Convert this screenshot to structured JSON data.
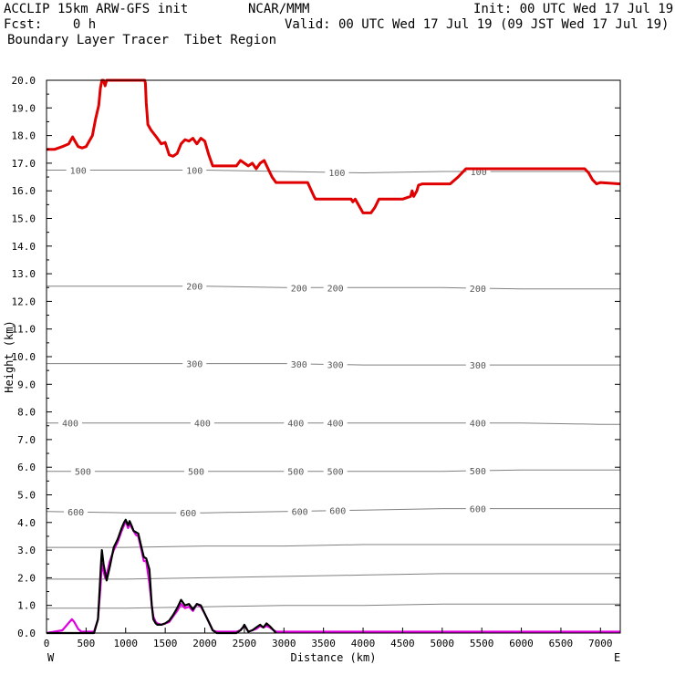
{
  "header": {
    "title_left": "ACCLIP 15km ARW-GFS init",
    "org": "NCAR/MMM",
    "init": "Init: 00 UTC Wed 17 Jul 19",
    "fcst": "Fcst:    0 h",
    "valid": "Valid: 00 UTC Wed 17 Jul 19 (09 JST Wed 17 Jul 19)",
    "product": "Boundary Layer Tracer  Tibet Region"
  },
  "chart_data": {
    "type": "line",
    "xlabel": "Distance (km)",
    "ylabel": "Height (km)",
    "xlim": [
      0,
      7250
    ],
    "ylim": [
      0,
      20
    ],
    "x_ticks": [
      0,
      500,
      1000,
      1500,
      2000,
      2500,
      3000,
      3500,
      4000,
      4500,
      5000,
      5500,
      6000,
      6500,
      7000
    ],
    "y_ticks": [
      "0.0",
      "1.0",
      "2.0",
      "3.0",
      "4.0",
      "5.0",
      "6.0",
      "7.0",
      "8.0",
      "9.0",
      "10.0",
      "11.0",
      "12.0",
      "13.0",
      "14.0",
      "15.0",
      "16.0",
      "17.0",
      "18.0",
      "19.0",
      "20.0"
    ],
    "x_end_labels": {
      "left": "W",
      "right": "E"
    },
    "grid": false,
    "colors": {
      "tropopause": "#e00000",
      "terrain_a": "#000000",
      "terrain_b": "#e000e0",
      "pressure": "#808080"
    },
    "series": [
      {
        "color": "#e00000",
        "x": [
          0,
          100,
          200,
          280,
          330,
          360,
          400,
          450,
          500,
          540,
          580,
          620,
          660,
          680,
          700,
          720,
          740,
          760,
          780,
          1240,
          1250,
          1260,
          1280,
          1320,
          1400,
          1450,
          1500,
          1550,
          1600,
          1650,
          1700,
          1750,
          1800,
          1850,
          1900,
          1950,
          2000,
          2050,
          2100,
          2300,
          2400,
          2450,
          2500,
          2550,
          2600,
          2650,
          2700,
          2750,
          2800,
          2850,
          2900,
          3000,
          3300,
          3380,
          3400,
          3500,
          3850,
          3870,
          3900,
          4000,
          4100,
          4150,
          4200,
          4500,
          4600,
          4620,
          4640,
          4680,
          4700,
          4750,
          4800,
          5100,
          5200,
          5300,
          6750,
          6800,
          6850,
          6900,
          6950,
          7000,
          7250
        ],
        "y": [
          17.5,
          17.5,
          17.6,
          17.7,
          17.95,
          17.8,
          17.6,
          17.55,
          17.6,
          17.8,
          18.0,
          18.6,
          19.1,
          19.7,
          20.0,
          20.0,
          19.8,
          20.0,
          20.0,
          20.0,
          19.9,
          19.2,
          18.4,
          18.2,
          17.9,
          17.7,
          17.75,
          17.3,
          17.25,
          17.35,
          17.7,
          17.85,
          17.8,
          17.9,
          17.7,
          17.9,
          17.8,
          17.3,
          16.9,
          16.9,
          16.9,
          17.1,
          17.0,
          16.9,
          17.0,
          16.8,
          17.0,
          17.1,
          16.8,
          16.5,
          16.3,
          16.3,
          16.3,
          15.8,
          15.7,
          15.7,
          15.7,
          15.6,
          15.7,
          15.2,
          15.2,
          15.4,
          15.7,
          15.7,
          15.8,
          16.0,
          15.8,
          16.0,
          16.2,
          16.25,
          16.25,
          16.25,
          16.5,
          16.8,
          16.8,
          16.8,
          16.65,
          16.4,
          16.25,
          16.3,
          16.25
        ]
      },
      {
        "color": "#e000e0",
        "x": [
          0,
          100,
          200,
          260,
          320,
          350,
          400,
          440,
          500,
          600,
          650,
          680,
          700,
          740,
          760,
          800,
          850,
          900,
          950,
          980,
          1000,
          1030,
          1050,
          1080,
          1100,
          1130,
          1160,
          1200,
          1230,
          1260,
          1300,
          1330,
          1350,
          1380,
          1400,
          1450,
          1500,
          1550,
          1600,
          1650,
          1700,
          1750,
          1800,
          1850,
          1900,
          1950,
          2000,
          2050,
          2100,
          2150,
          2200,
          2300,
          2400,
          2450,
          2480,
          2500,
          2520,
          2550,
          2600,
          2650,
          2700,
          2740,
          2780,
          2820,
          2870,
          2900,
          3000,
          4000,
          5000,
          6000,
          7000,
          7250
        ],
        "y": [
          0.0,
          0.05,
          0.1,
          0.3,
          0.5,
          0.4,
          0.15,
          0.05,
          0.05,
          0.05,
          0.5,
          1.6,
          2.5,
          2.0,
          2.1,
          2.6,
          3.0,
          3.3,
          3.7,
          3.9,
          4.05,
          3.8,
          3.95,
          3.8,
          3.7,
          3.55,
          3.5,
          3.0,
          2.6,
          2.6,
          1.8,
          1.0,
          0.6,
          0.4,
          0.35,
          0.3,
          0.35,
          0.4,
          0.6,
          0.8,
          1.05,
          0.9,
          0.95,
          0.8,
          1.05,
          0.95,
          0.7,
          0.4,
          0.1,
          0.05,
          0.05,
          0.05,
          0.05,
          0.1,
          0.2,
          0.25,
          0.2,
          0.05,
          0.1,
          0.15,
          0.25,
          0.2,
          0.25,
          0.2,
          0.1,
          0.05,
          0.05,
          0.05,
          0.05,
          0.05,
          0.05,
          0.05
        ]
      },
      {
        "color": "#000000",
        "x": [
          0,
          100,
          200,
          300,
          400,
          500,
          600,
          650,
          670,
          690,
          700,
          720,
          740,
          760,
          800,
          850,
          900,
          950,
          980,
          1000,
          1030,
          1050,
          1080,
          1100,
          1130,
          1160,
          1200,
          1230,
          1260,
          1300,
          1330,
          1350,
          1380,
          1400,
          1450,
          1500,
          1550,
          1600,
          1650,
          1700,
          1750,
          1800,
          1850,
          1900,
          1950,
          2000,
          2050,
          2100,
          2150,
          2200,
          2400,
          2450,
          2480,
          2500,
          2520,
          2550,
          2600,
          2650,
          2700,
          2740,
          2780,
          2820,
          2870,
          2900
        ],
        "y": [
          0.0,
          0.0,
          0.0,
          0.0,
          0.0,
          0.0,
          0.0,
          0.5,
          1.5,
          2.6,
          3.0,
          2.5,
          2.2,
          1.9,
          2.4,
          3.1,
          3.4,
          3.8,
          4.0,
          4.1,
          3.9,
          4.05,
          3.85,
          3.7,
          3.65,
          3.6,
          3.1,
          2.75,
          2.7,
          2.3,
          1.0,
          0.5,
          0.35,
          0.3,
          0.3,
          0.35,
          0.45,
          0.65,
          0.9,
          1.2,
          1.0,
          1.05,
          0.85,
          1.05,
          1.0,
          0.7,
          0.4,
          0.1,
          0.0,
          0.0,
          0.0,
          0.1,
          0.2,
          0.3,
          0.2,
          0.05,
          0.1,
          0.2,
          0.3,
          0.2,
          0.35,
          0.25,
          0.1,
          0.0
        ]
      }
    ],
    "pressure_contours": [
      {
        "level": "100",
        "label": "100",
        "y": [
          16.75,
          16.75,
          16.75,
          16.7,
          16.65,
          16.7,
          16.7,
          16.7,
          16.7
        ],
        "x": [
          0,
          1000,
          2000,
          3000,
          4000,
          5000,
          6000,
          7000,
          7250
        ],
        "label_x": [
          400,
          1870,
          3670,
          5460
        ]
      },
      {
        "level": "200",
        "label": "200",
        "y": [
          12.55,
          12.55,
          12.55,
          12.5,
          12.5,
          12.5,
          12.45,
          12.45,
          12.45
        ],
        "x": [
          0,
          1000,
          2000,
          3000,
          4000,
          5000,
          6000,
          7000,
          7250
        ],
        "label_x": [
          1870,
          3190,
          3650,
          5450
        ]
      },
      {
        "level": "300",
        "label": "300",
        "y": [
          9.75,
          9.75,
          9.75,
          9.75,
          9.7,
          9.7,
          9.7,
          9.7,
          9.7
        ],
        "x": [
          0,
          1000,
          2000,
          3000,
          4000,
          5000,
          6000,
          7000,
          7250
        ],
        "label_x": [
          1870,
          3190,
          3650,
          5450
        ]
      },
      {
        "level": "400",
        "label": "400",
        "y": [
          7.6,
          7.6,
          7.6,
          7.6,
          7.6,
          7.6,
          7.6,
          7.55,
          7.55
        ],
        "x": [
          0,
          1000,
          2000,
          3000,
          4000,
          5000,
          6000,
          7000,
          7250
        ],
        "label_x": [
          300,
          1970,
          3150,
          3650,
          5450
        ]
      },
      {
        "level": "500",
        "label": "500",
        "y": [
          5.85,
          5.85,
          5.85,
          5.85,
          5.85,
          5.85,
          5.9,
          5.9,
          5.9
        ],
        "x": [
          0,
          1000,
          2000,
          3000,
          4000,
          5000,
          6000,
          7000,
          7250
        ],
        "label_x": [
          460,
          1890,
          3150,
          3650,
          5450
        ]
      },
      {
        "level": "600",
        "label": "600",
        "y": [
          4.4,
          4.35,
          4.35,
          4.4,
          4.45,
          4.5,
          4.5,
          4.5,
          4.5
        ],
        "x": [
          0,
          1000,
          2000,
          3000,
          4000,
          5000,
          6000,
          7000,
          7250
        ],
        "label_x": [
          370,
          1790,
          3200,
          3680,
          5450
        ]
      },
      {
        "level": "700",
        "label": "",
        "y": [
          3.1,
          3.1,
          3.15,
          3.15,
          3.2,
          3.2,
          3.2,
          3.2,
          3.2
        ],
        "x": [
          0,
          1000,
          2000,
          3000,
          4000,
          5000,
          6000,
          7000,
          7250
        ],
        "label_x": []
      },
      {
        "level": "800",
        "label": "",
        "y": [
          1.95,
          1.95,
          2.0,
          2.05,
          2.1,
          2.15,
          2.15,
          2.15,
          2.15
        ],
        "x": [
          0,
          1000,
          2000,
          3000,
          4000,
          5000,
          6000,
          7000,
          7250
        ],
        "label_x": []
      },
      {
        "level": "900",
        "label": "",
        "y": [
          0.9,
          0.9,
          0.95,
          1.0,
          1.0,
          1.05,
          1.05,
          1.05,
          1.05
        ],
        "x": [
          0,
          1000,
          2000,
          3000,
          4000,
          5000,
          6000,
          7000,
          7250
        ],
        "label_x": []
      }
    ]
  }
}
